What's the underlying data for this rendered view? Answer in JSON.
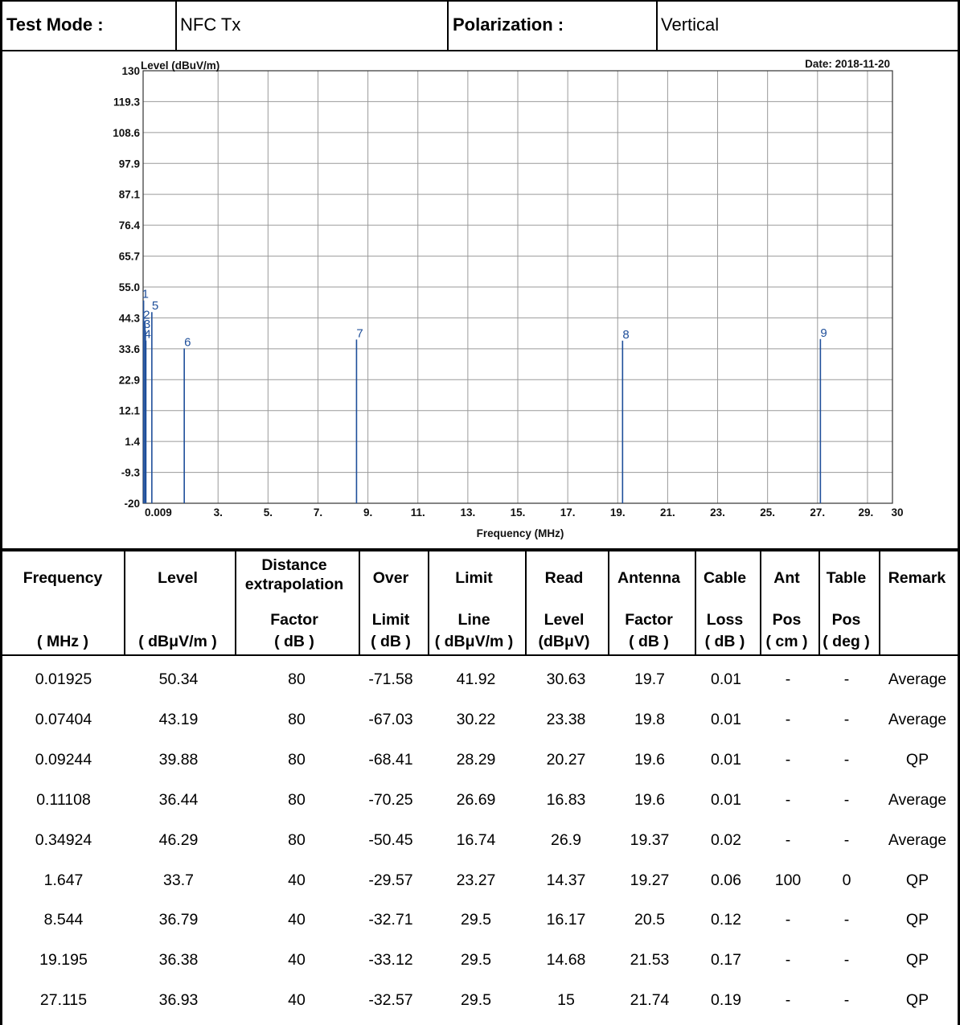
{
  "header": {
    "test_mode_label": "Test Mode :",
    "test_mode_value": "NFC Tx",
    "polarization_label": "Polarization :",
    "polarization_value": "Vertical"
  },
  "chart_data": {
    "type": "bar",
    "ylabel": "Level (dBuV/m)",
    "xlabel": "Frequency (MHz)",
    "date_label": "Date: 2018-11-20",
    "ylim": [
      -20,
      130
    ],
    "xlim": [
      0.009,
      30
    ],
    "yticks": [
      "130",
      "119.3",
      "108.6",
      "97.9",
      "87.1",
      "76.4",
      "65.7",
      "55.0",
      "44.3",
      "33.6",
      "22.9",
      "12.1",
      "1.4",
      "-9.3",
      "-20"
    ],
    "xticks": [
      {
        "label": "0.009",
        "value": 0.009
      },
      {
        "label": "3.",
        "value": 3
      },
      {
        "label": "5.",
        "value": 5
      },
      {
        "label": "7.",
        "value": 7
      },
      {
        "label": "9.",
        "value": 9
      },
      {
        "label": "11.",
        "value": 11
      },
      {
        "label": "13.",
        "value": 13
      },
      {
        "label": "15.",
        "value": 15
      },
      {
        "label": "17.",
        "value": 17
      },
      {
        "label": "19.",
        "value": 19
      },
      {
        "label": "21.",
        "value": 21
      },
      {
        "label": "23.",
        "value": 23
      },
      {
        "label": "25.",
        "value": 25
      },
      {
        "label": "27.",
        "value": 27
      },
      {
        "label": "29.",
        "value": 29
      },
      {
        "label": "30",
        "value": 30
      }
    ],
    "grid": true,
    "line_color": "#1f4f9a",
    "points": [
      {
        "label": "1",
        "x": 0.01925,
        "y": 50.34
      },
      {
        "label": "2",
        "x": 0.07404,
        "y": 43.19
      },
      {
        "label": "3",
        "x": 0.09244,
        "y": 39.88
      },
      {
        "label": "4",
        "x": 0.11108,
        "y": 36.44
      },
      {
        "label": "5",
        "x": 0.34924,
        "y": 46.29
      },
      {
        "label": "6",
        "x": 1.647,
        "y": 33.7
      },
      {
        "label": "7",
        "x": 8.544,
        "y": 36.79
      },
      {
        "label": "8",
        "x": 19.195,
        "y": 36.38
      },
      {
        "label": "9",
        "x": 27.115,
        "y": 36.93
      }
    ]
  },
  "table": {
    "columns": [
      {
        "l1": "Frequency",
        "l2": "",
        "l3": "",
        "unit": "( MHz )"
      },
      {
        "l1": "Level",
        "l2": "",
        "l3": "",
        "unit": "( dBμV/m )"
      },
      {
        "l1": "Distance",
        "l2": "extrapolation",
        "l3": "Factor",
        "unit": "( dB )"
      },
      {
        "l1": "Over",
        "l2": "",
        "l3": "Limit",
        "unit": "( dB )"
      },
      {
        "l1": "Limit",
        "l2": "",
        "l3": "Line",
        "unit": "( dBμV/m )"
      },
      {
        "l1": "Read",
        "l2": "",
        "l3": "Level",
        "unit": "(dBμV)"
      },
      {
        "l1": "Antenna",
        "l2": "",
        "l3": "Factor",
        "unit": "( dB )"
      },
      {
        "l1": "Cable",
        "l2": "",
        "l3": "Loss",
        "unit": "( dB )"
      },
      {
        "l1": "Ant",
        "l2": "",
        "l3": "Pos",
        "unit": "( cm )"
      },
      {
        "l1": "Table",
        "l2": "",
        "l3": "Pos",
        "unit": "( deg )"
      },
      {
        "l1": "Remark",
        "l2": "",
        "l3": "",
        "unit": ""
      }
    ],
    "rows": [
      [
        "0.01925",
        "50.34",
        "80",
        "-71.58",
        "41.92",
        "30.63",
        "19.7",
        "0.01",
        "-",
        "-",
        "Average"
      ],
      [
        "0.07404",
        "43.19",
        "80",
        "-67.03",
        "30.22",
        "23.38",
        "19.8",
        "0.01",
        "-",
        "-",
        "Average"
      ],
      [
        "0.09244",
        "39.88",
        "80",
        "-68.41",
        "28.29",
        "20.27",
        "19.6",
        "0.01",
        "-",
        "-",
        "QP"
      ],
      [
        "0.11108",
        "36.44",
        "80",
        "-70.25",
        "26.69",
        "16.83",
        "19.6",
        "0.01",
        "-",
        "-",
        "Average"
      ],
      [
        "0.34924",
        "46.29",
        "80",
        "-50.45",
        "16.74",
        "26.9",
        "19.37",
        "0.02",
        "-",
        "-",
        "Average"
      ],
      [
        "1.647",
        "33.7",
        "40",
        "-29.57",
        "23.27",
        "14.37",
        "19.27",
        "0.06",
        "100",
        "0",
        "QP"
      ],
      [
        "8.544",
        "36.79",
        "40",
        "-32.71",
        "29.5",
        "16.17",
        "20.5",
        "0.12",
        "-",
        "-",
        "QP"
      ],
      [
        "19.195",
        "36.38",
        "40",
        "-33.12",
        "29.5",
        "14.68",
        "21.53",
        "0.17",
        "-",
        "-",
        "QP"
      ],
      [
        "27.115",
        "36.93",
        "40",
        "-32.57",
        "29.5",
        "15",
        "21.74",
        "0.19",
        "-",
        "-",
        "QP"
      ]
    ]
  }
}
